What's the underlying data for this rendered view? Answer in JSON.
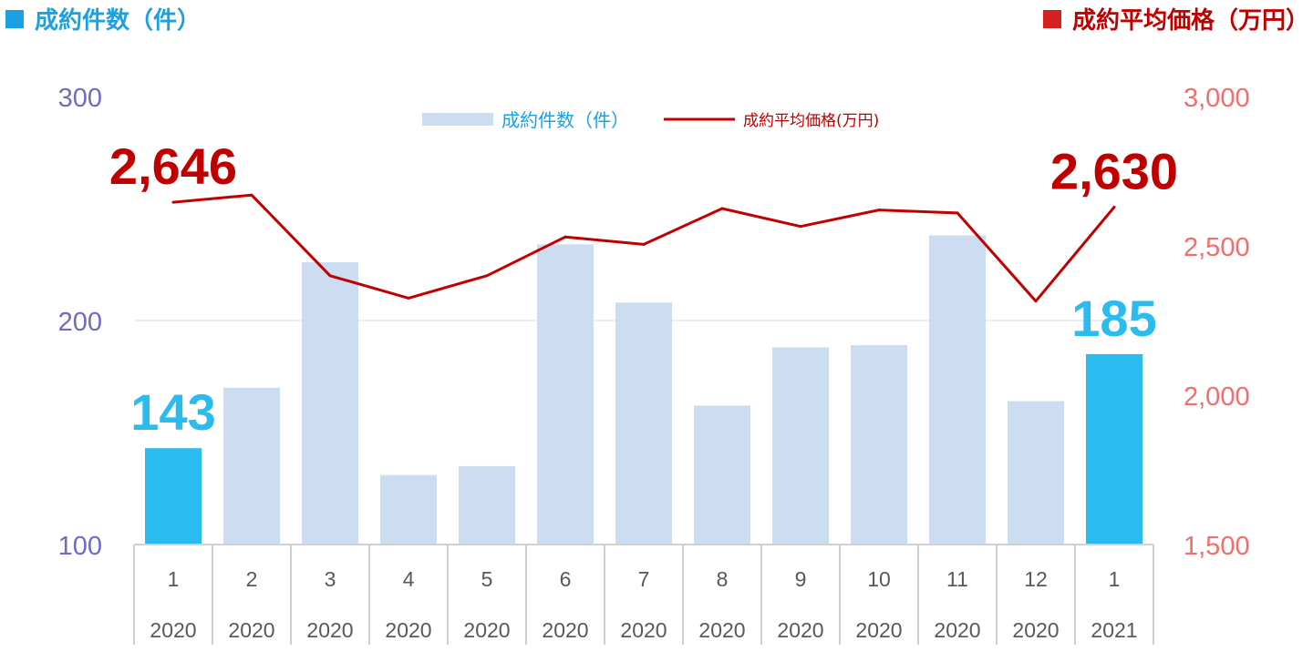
{
  "headers": {
    "left": "成約件数（件）",
    "right": "成約平均価格（万円）"
  },
  "colors": {
    "bar": "#ccdcf1",
    "bar_highlight": "#2bbcef",
    "line": "#c00000",
    "left_axis": "#6e6ac6",
    "right_axis": "#f26d6d",
    "header_left": "#1ba1e2",
    "header_right": "#c00000"
  },
  "chart_data": {
    "type": "bar",
    "categories": [
      "1",
      "2",
      "3",
      "4",
      "5",
      "6",
      "7",
      "8",
      "9",
      "10",
      "11",
      "12",
      "1"
    ],
    "category_years": [
      "2020",
      "2020",
      "2020",
      "2020",
      "2020",
      "2020",
      "2020",
      "2020",
      "2020",
      "2020",
      "2020",
      "2020",
      "2021"
    ],
    "series": [
      {
        "name": "成約件数（件）",
        "type": "bar",
        "axis": "left",
        "values": [
          143,
          170,
          226,
          131,
          135,
          234,
          208,
          162,
          188,
          189,
          238,
          164,
          185
        ],
        "highlight": [
          0,
          12
        ]
      },
      {
        "name": "成約平均価格(万円)",
        "type": "line",
        "axis": "right",
        "values": [
          2646,
          2670,
          2400,
          2325,
          2400,
          2530,
          2505,
          2625,
          2565,
          2620,
          2610,
          2315,
          2630
        ]
      }
    ],
    "y_left": {
      "range": [
        100,
        300
      ],
      "ticks": [
        "100",
        "200",
        "300"
      ]
    },
    "y_right": {
      "range": [
        1500,
        3000
      ],
      "ticks": [
        "1,500",
        "2,000",
        "2,500",
        "3,000"
      ]
    },
    "gridlines": [
      200
    ],
    "legend_position": "top-center",
    "annotations": [
      {
        "text": "143",
        "series": "bar",
        "index": 0
      },
      {
        "text": "185",
        "series": "bar",
        "index": 12
      },
      {
        "text": "2,646",
        "series": "line",
        "index": 0
      },
      {
        "text": "2,630",
        "series": "line",
        "index": 12
      }
    ]
  }
}
